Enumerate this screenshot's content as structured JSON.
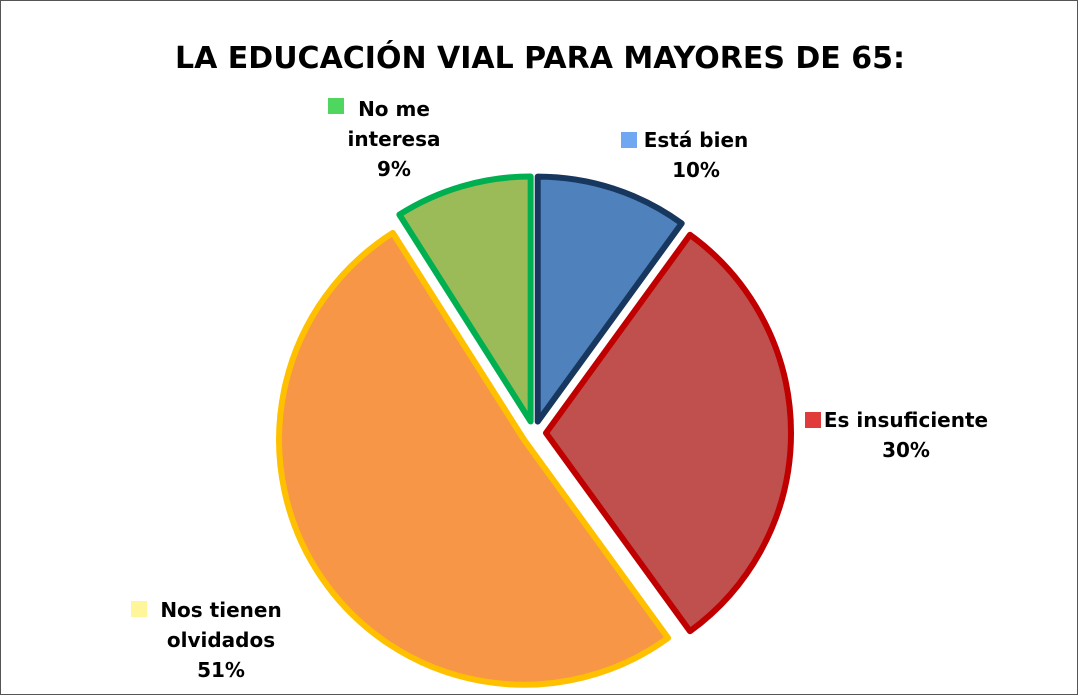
{
  "chart_data": {
    "type": "pie",
    "title": "LA EDUCACIÓN VIAL PARA MAYORES DE 65:",
    "categories": [
      "Está bien",
      "Es insuficiente",
      "Nos tienen olvidados",
      "No me interesa"
    ],
    "values": [
      10,
      30,
      51,
      9
    ],
    "value_labels": [
      "10%",
      "30%",
      "51%",
      "9%"
    ],
    "colors": [
      "#4f81bd",
      "#c0504d",
      "#f79646",
      "#9bbb59"
    ],
    "edge_colors": [
      "#17375e",
      "#c00000",
      "#ffc000",
      "#00b050"
    ],
    "legend_key_colors": [
      "#6fa8f0",
      "#e03a3a",
      "#fff59a",
      "#4fd65f"
    ]
  }
}
